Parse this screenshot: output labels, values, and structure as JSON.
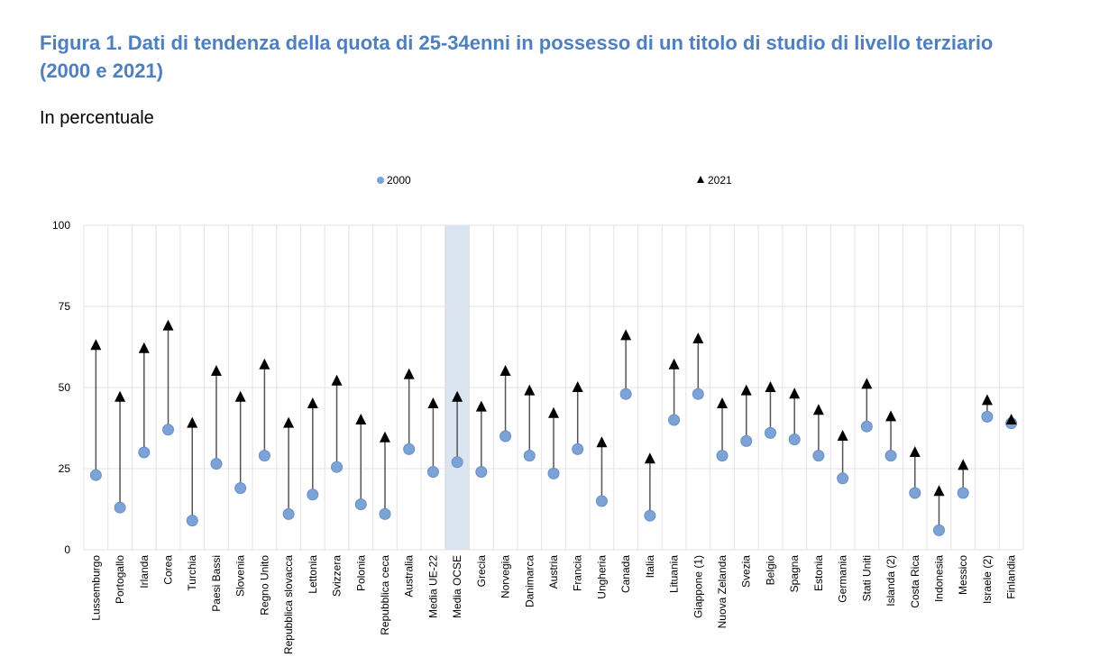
{
  "figure": {
    "title": "Figura 1. Dati di tendenza della quota di 25-34enni in possesso di un titolo di studio di livello terziario (2000 e 2021)",
    "subtitle": "In percentuale"
  },
  "colors": {
    "series_2000": "#7ba3d8",
    "series_2021": "#000000",
    "highlight": "#dbe5f1",
    "grid": "#e3e3e3"
  },
  "chart_data": {
    "type": "scatter",
    "title": "Figura 1. Dati di tendenza della quota di 25-34enni in possesso di un titolo di studio di livello terziario (2000 e 2021)",
    "ylabel": "In percentuale",
    "ylim": [
      0,
      100
    ],
    "yticks": [
      "0",
      "25",
      "50",
      "75",
      "100"
    ],
    "grid": true,
    "legend_placement": "top",
    "highlighted_category": "Media OCSE",
    "categories": [
      "Lussemburgo",
      "Portogallo",
      "Irlanda",
      "Corea",
      "Turchia",
      "Paesi Bassi",
      "Slovenia",
      "Regno Unito",
      "Repubblica slovacca",
      "Lettonia",
      "Svizzera",
      "Polonia",
      "Repubblica ceca",
      "Australia",
      "Media UE-22",
      "Media OCSE",
      "Grecia",
      "Norvegia",
      "Danimarca",
      "Austria",
      "Francia",
      "Ungheria",
      "Canada",
      "Italia",
      "Lituania",
      "Giappone (1)",
      "Nuova Zelanda",
      "Svezia",
      "Belgio",
      "Spagna",
      "Estonia",
      "Germania",
      "Stati Uniti",
      "Islanda (2)",
      "Costa Rica",
      "Indonesia",
      "Messico",
      "Israele (2)",
      "Finlandia"
    ],
    "series": [
      {
        "name": "2000",
        "marker": "circle",
        "values": [
          23,
          13,
          30,
          37,
          9,
          26.5,
          19,
          29,
          11,
          17,
          25.5,
          14,
          11,
          31,
          24,
          27,
          24,
          35,
          29,
          23.5,
          31,
          15,
          48,
          10.5,
          40,
          48,
          29,
          33.5,
          36,
          34,
          29,
          22,
          38,
          29,
          17.5,
          6,
          17.5,
          41,
          39
        ]
      },
      {
        "name": "2021",
        "marker": "triangle",
        "values": [
          63,
          47,
          62,
          69,
          39,
          55,
          47,
          57,
          39,
          45,
          52,
          40,
          34.5,
          54,
          45,
          47,
          44,
          55,
          49,
          42,
          50,
          33,
          66,
          28,
          57,
          65,
          45,
          49,
          50,
          48,
          43,
          35,
          51,
          41,
          30,
          18,
          26,
          46,
          40
        ]
      }
    ]
  }
}
